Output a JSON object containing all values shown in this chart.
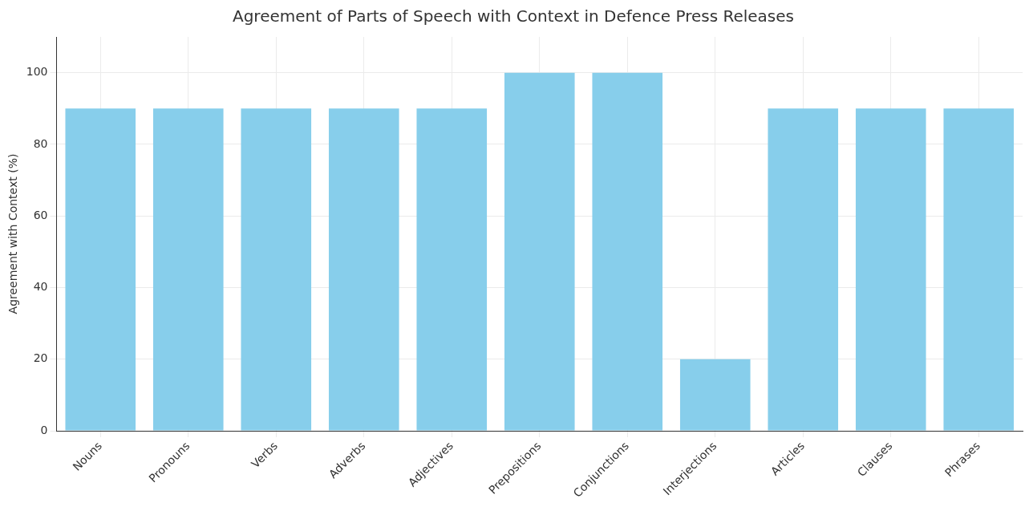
{
  "chart_data": {
    "type": "bar",
    "title": "Agreement of Parts of Speech with Context in Defence Press Releases",
    "ylabel": "Agreement with Context (%)",
    "categories": [
      "Nouns",
      "Pronouns",
      "Verbs",
      "Adverbs",
      "Adjectives",
      "Prepositions",
      "Conjunctions",
      "Interjections",
      "Articles",
      "Clauses",
      "Phrases"
    ],
    "values": [
      90,
      90,
      90,
      90,
      90,
      100,
      100,
      20,
      90,
      90,
      90
    ],
    "color": "#87ceeb",
    "ylim": [
      0,
      110
    ],
    "yticks": [
      0,
      20,
      40,
      60,
      80,
      100
    ],
    "grid": true
  }
}
